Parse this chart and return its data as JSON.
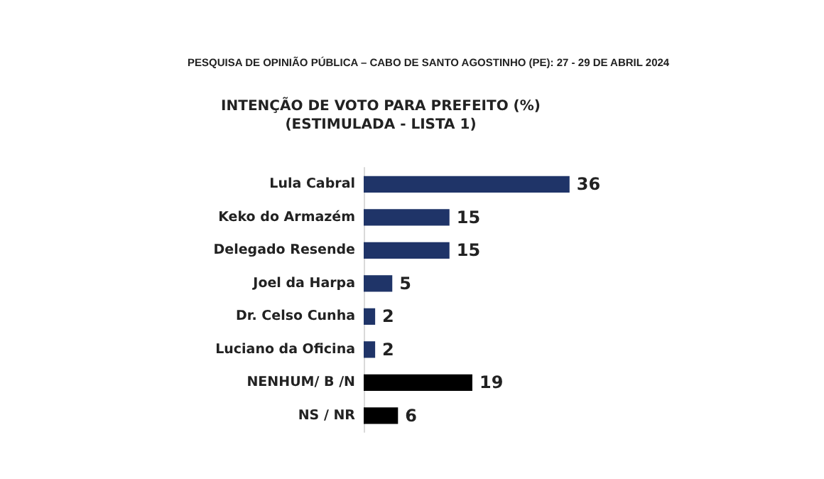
{
  "chart_data": {
    "type": "bar",
    "orientation": "horizontal",
    "title": "INTENÇÃO DE VOTO PARA PREFEITO (%)",
    "subtitle": "(ESTIMULADA - LISTA 1)",
    "annotations": [
      "PESQUISA DE OPINIÃO PÚBLICA – CABO DE SANTO AGOSTINHO (PE): 27 - 29 DE ABRIL 2024"
    ],
    "categories": [
      "Lula Cabral",
      "Keko do Armazém",
      "Delegado Resende",
      "Joel da Harpa",
      "Dr. Celso Cunha",
      "Luciano da Oficina",
      "NENHUM/ B /N",
      "NS / NR"
    ],
    "values": [
      36,
      15,
      15,
      5,
      2,
      2,
      19,
      6
    ],
    "colors": [
      "#1f3468",
      "#1f3468",
      "#1f3468",
      "#1f3468",
      "#1f3468",
      "#1f3468",
      "#000000",
      "#000000"
    ],
    "data_labels": true
  }
}
